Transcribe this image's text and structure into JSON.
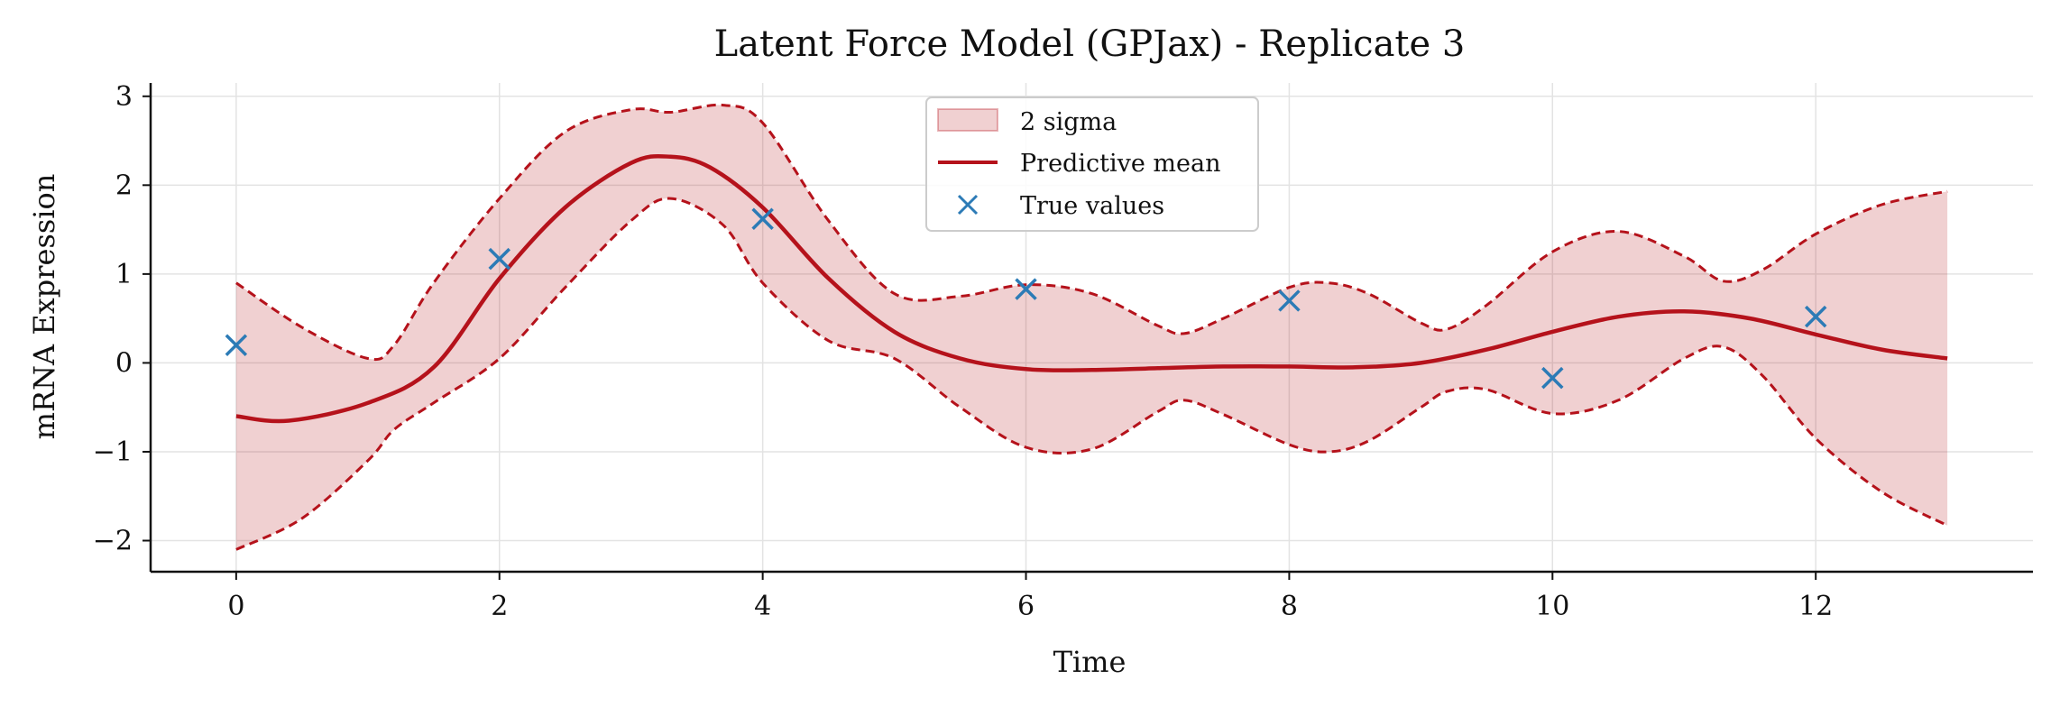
{
  "chart_data": {
    "type": "line",
    "title": "Latent Force Model (GPJax) - Replicate 3",
    "xlabel": "Time",
    "ylabel": "mRNA Expression",
    "xlim": [
      -0.65,
      13.65
    ],
    "ylim": [
      -2.35,
      3.15
    ],
    "x_ticks": [
      0,
      2,
      4,
      6,
      8,
      10,
      12
    ],
    "y_ticks": [
      -2,
      -1,
      0,
      1,
      2,
      3
    ],
    "x_tick_labels": [
      "0",
      "2",
      "4",
      "6",
      "8",
      "10",
      "12"
    ],
    "y_tick_labels": [
      "−2",
      "−1",
      "0",
      "1",
      "2",
      "3"
    ],
    "grid": true,
    "legend_position": "top-center",
    "legend": [
      "2 sigma",
      "Predictive mean",
      "True values"
    ],
    "colors": {
      "band": "#b5121b",
      "mean": "#b5121b",
      "points": "#2c7bb6"
    },
    "series": [
      {
        "name": "Predictive mean",
        "x": [
          0,
          0.4,
          1,
          1.5,
          2,
          2.5,
          3,
          3.3,
          3.6,
          4,
          4.5,
          5,
          5.5,
          6,
          6.5,
          7,
          7.5,
          8,
          8.5,
          9,
          9.5,
          10,
          10.5,
          11,
          11.5,
          12,
          12.5,
          13
        ],
        "y": [
          -0.6,
          -0.65,
          -0.45,
          -0.05,
          0.95,
          1.75,
          2.25,
          2.32,
          2.2,
          1.75,
          0.95,
          0.35,
          0.05,
          -0.07,
          -0.08,
          -0.06,
          -0.04,
          -0.04,
          -0.05,
          0.0,
          0.15,
          0.35,
          0.52,
          0.58,
          0.5,
          0.32,
          0.15,
          0.05
        ]
      },
      {
        "name": "2 sigma",
        "x": [
          0,
          0.5,
          1,
          1.2,
          1.5,
          2,
          2.5,
          3,
          3.3,
          3.7,
          4,
          4.5,
          5,
          5.5,
          6,
          6.5,
          7,
          7.2,
          7.5,
          8,
          8.3,
          8.6,
          9,
          9.2,
          9.5,
          10,
          10.5,
          11,
          11.3,
          11.6,
          12,
          12.5,
          13
        ],
        "upper": [
          0.9,
          0.4,
          0.05,
          0.2,
          0.9,
          1.85,
          2.6,
          2.85,
          2.82,
          2.9,
          2.7,
          1.6,
          0.78,
          0.75,
          0.88,
          0.78,
          0.42,
          0.33,
          0.5,
          0.85,
          0.9,
          0.78,
          0.45,
          0.38,
          0.65,
          1.25,
          1.48,
          1.2,
          0.92,
          1.05,
          1.45,
          1.78,
          1.93
        ],
        "lower": [
          -2.1,
          -1.75,
          -1.1,
          -0.75,
          -0.45,
          0.05,
          0.85,
          1.6,
          1.85,
          1.55,
          0.9,
          0.25,
          0.05,
          -0.5,
          -0.95,
          -0.97,
          -0.55,
          -0.42,
          -0.58,
          -0.92,
          -1.0,
          -0.88,
          -0.5,
          -0.32,
          -0.3,
          -0.57,
          -0.42,
          0.05,
          0.18,
          -0.15,
          -0.85,
          -1.45,
          -1.83
        ]
      },
      {
        "name": "True values",
        "x": [
          0,
          2,
          4,
          6,
          8,
          10,
          12
        ],
        "y": [
          0.2,
          1.17,
          1.62,
          0.83,
          0.7,
          -0.17,
          0.52
        ]
      }
    ]
  }
}
